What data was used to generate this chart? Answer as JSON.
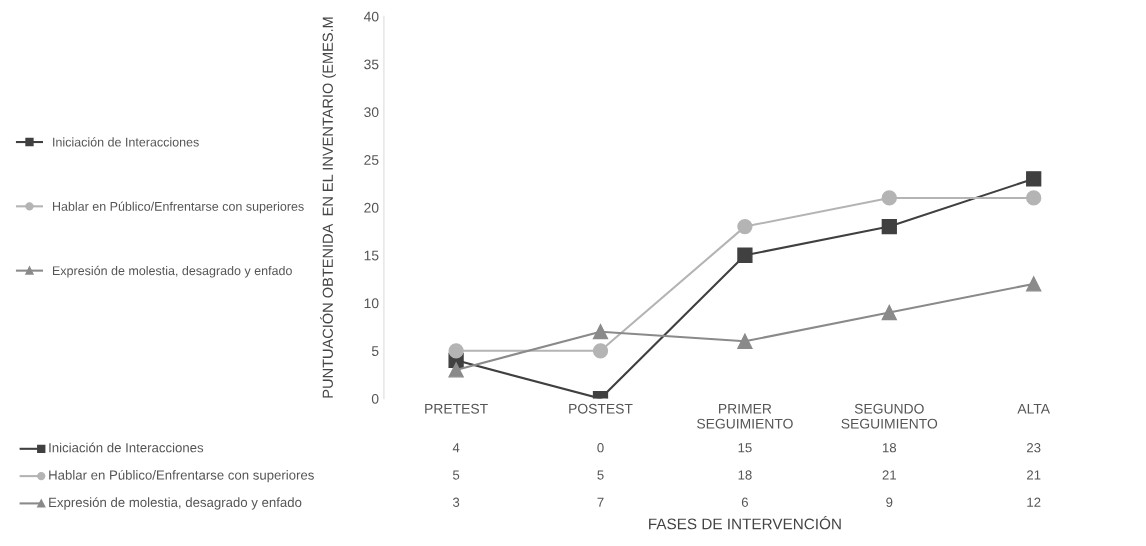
{
  "chart_data": {
    "type": "line",
    "ylabel": "PUNTUACIÓN OBTENIDA  EN EL INVENTARIO (EMES.M",
    "annotations": [
      "FASES DE INTERVENCIÓN"
    ],
    "categories": [
      "PRETEST",
      "POSTEST",
      "PRIMER\nSEGUIMIENTO",
      "SEGUNDO\nSEGUIMIENTO",
      "ALTA"
    ],
    "series": [
      {
        "name": "Iniciación de Interacciones",
        "color": "#404040",
        "marker": "square",
        "values": [
          4,
          0,
          15,
          18,
          23
        ]
      },
      {
        "name": "Hablar en Público/Enfrentarse con superiores",
        "color": "#b4b4b4",
        "marker": "circle",
        "values": [
          5,
          5,
          18,
          21,
          21
        ]
      },
      {
        "name": "Expresión de molestia, desagrado y enfado",
        "color": "#8a8a8a",
        "marker": "triangle",
        "values": [
          3,
          7,
          6,
          9,
          12
        ]
      }
    ],
    "ylim": [
      0,
      40
    ],
    "yticks": [
      0,
      5,
      10,
      15,
      20,
      25,
      30,
      35,
      40
    ],
    "grid": false,
    "legend": "left",
    "data_labels": true
  }
}
